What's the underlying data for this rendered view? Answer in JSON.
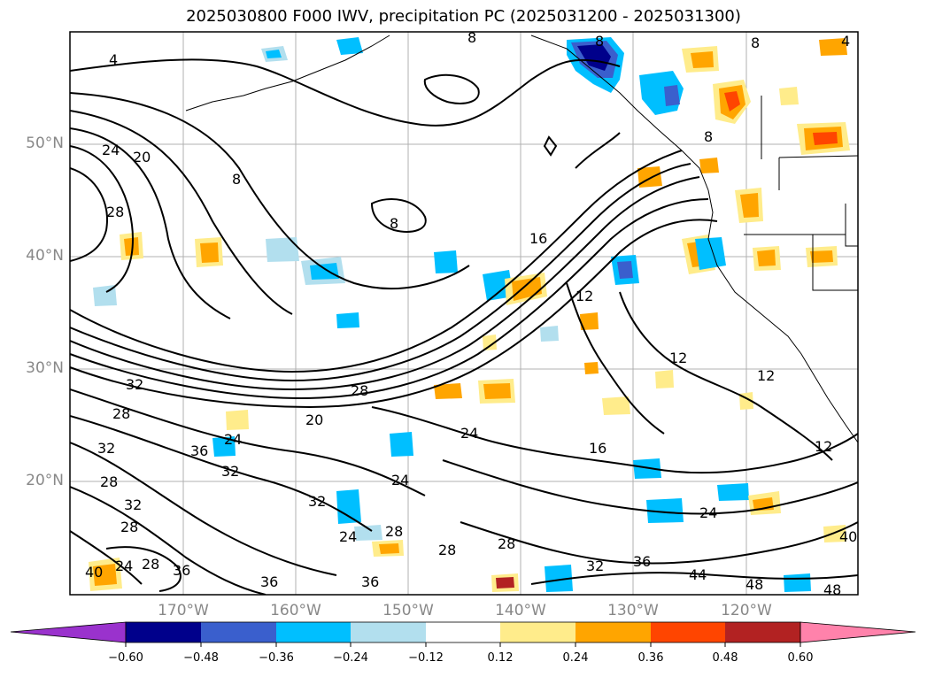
{
  "title": "2025030800 F000 IWV, precipitation PC (2025031200 - 2025031300)",
  "lat_labels": [
    "50°N",
    "40°N",
    "30°N",
    "20°N"
  ],
  "lon_labels": [
    "170°W",
    "160°W",
    "150°W",
    "140°W",
    "130°W",
    "120°W"
  ],
  "contour_labels": [
    "4",
    "8",
    "8",
    "8",
    "8",
    "4",
    "24",
    "20",
    "28",
    "8",
    "16",
    "12",
    "12",
    "12",
    "8",
    "12",
    "32",
    "28",
    "28",
    "32",
    "20",
    "24",
    "24",
    "24",
    "16",
    "24",
    "36",
    "32",
    "28",
    "32",
    "28",
    "24",
    "28",
    "28",
    "28",
    "32",
    "36",
    "40",
    "44",
    "48",
    "48",
    "40",
    "36",
    "32",
    "28",
    "24",
    "36",
    "36"
  ],
  "colorbar": {
    "ticks": [
      "−0.60",
      "−0.48",
      "−0.36",
      "−0.24",
      "−0.12",
      "0.12",
      "0.24",
      "0.36",
      "0.48",
      "0.60"
    ],
    "colors": [
      "#9a32cd",
      "#00008b",
      "#3a5fcd",
      "#00bfff",
      "#b2dfee",
      "#ffffff",
      "#ffec8b",
      "#ffa500",
      "#ff4500",
      "#b22222",
      "#ff82ab"
    ]
  }
}
